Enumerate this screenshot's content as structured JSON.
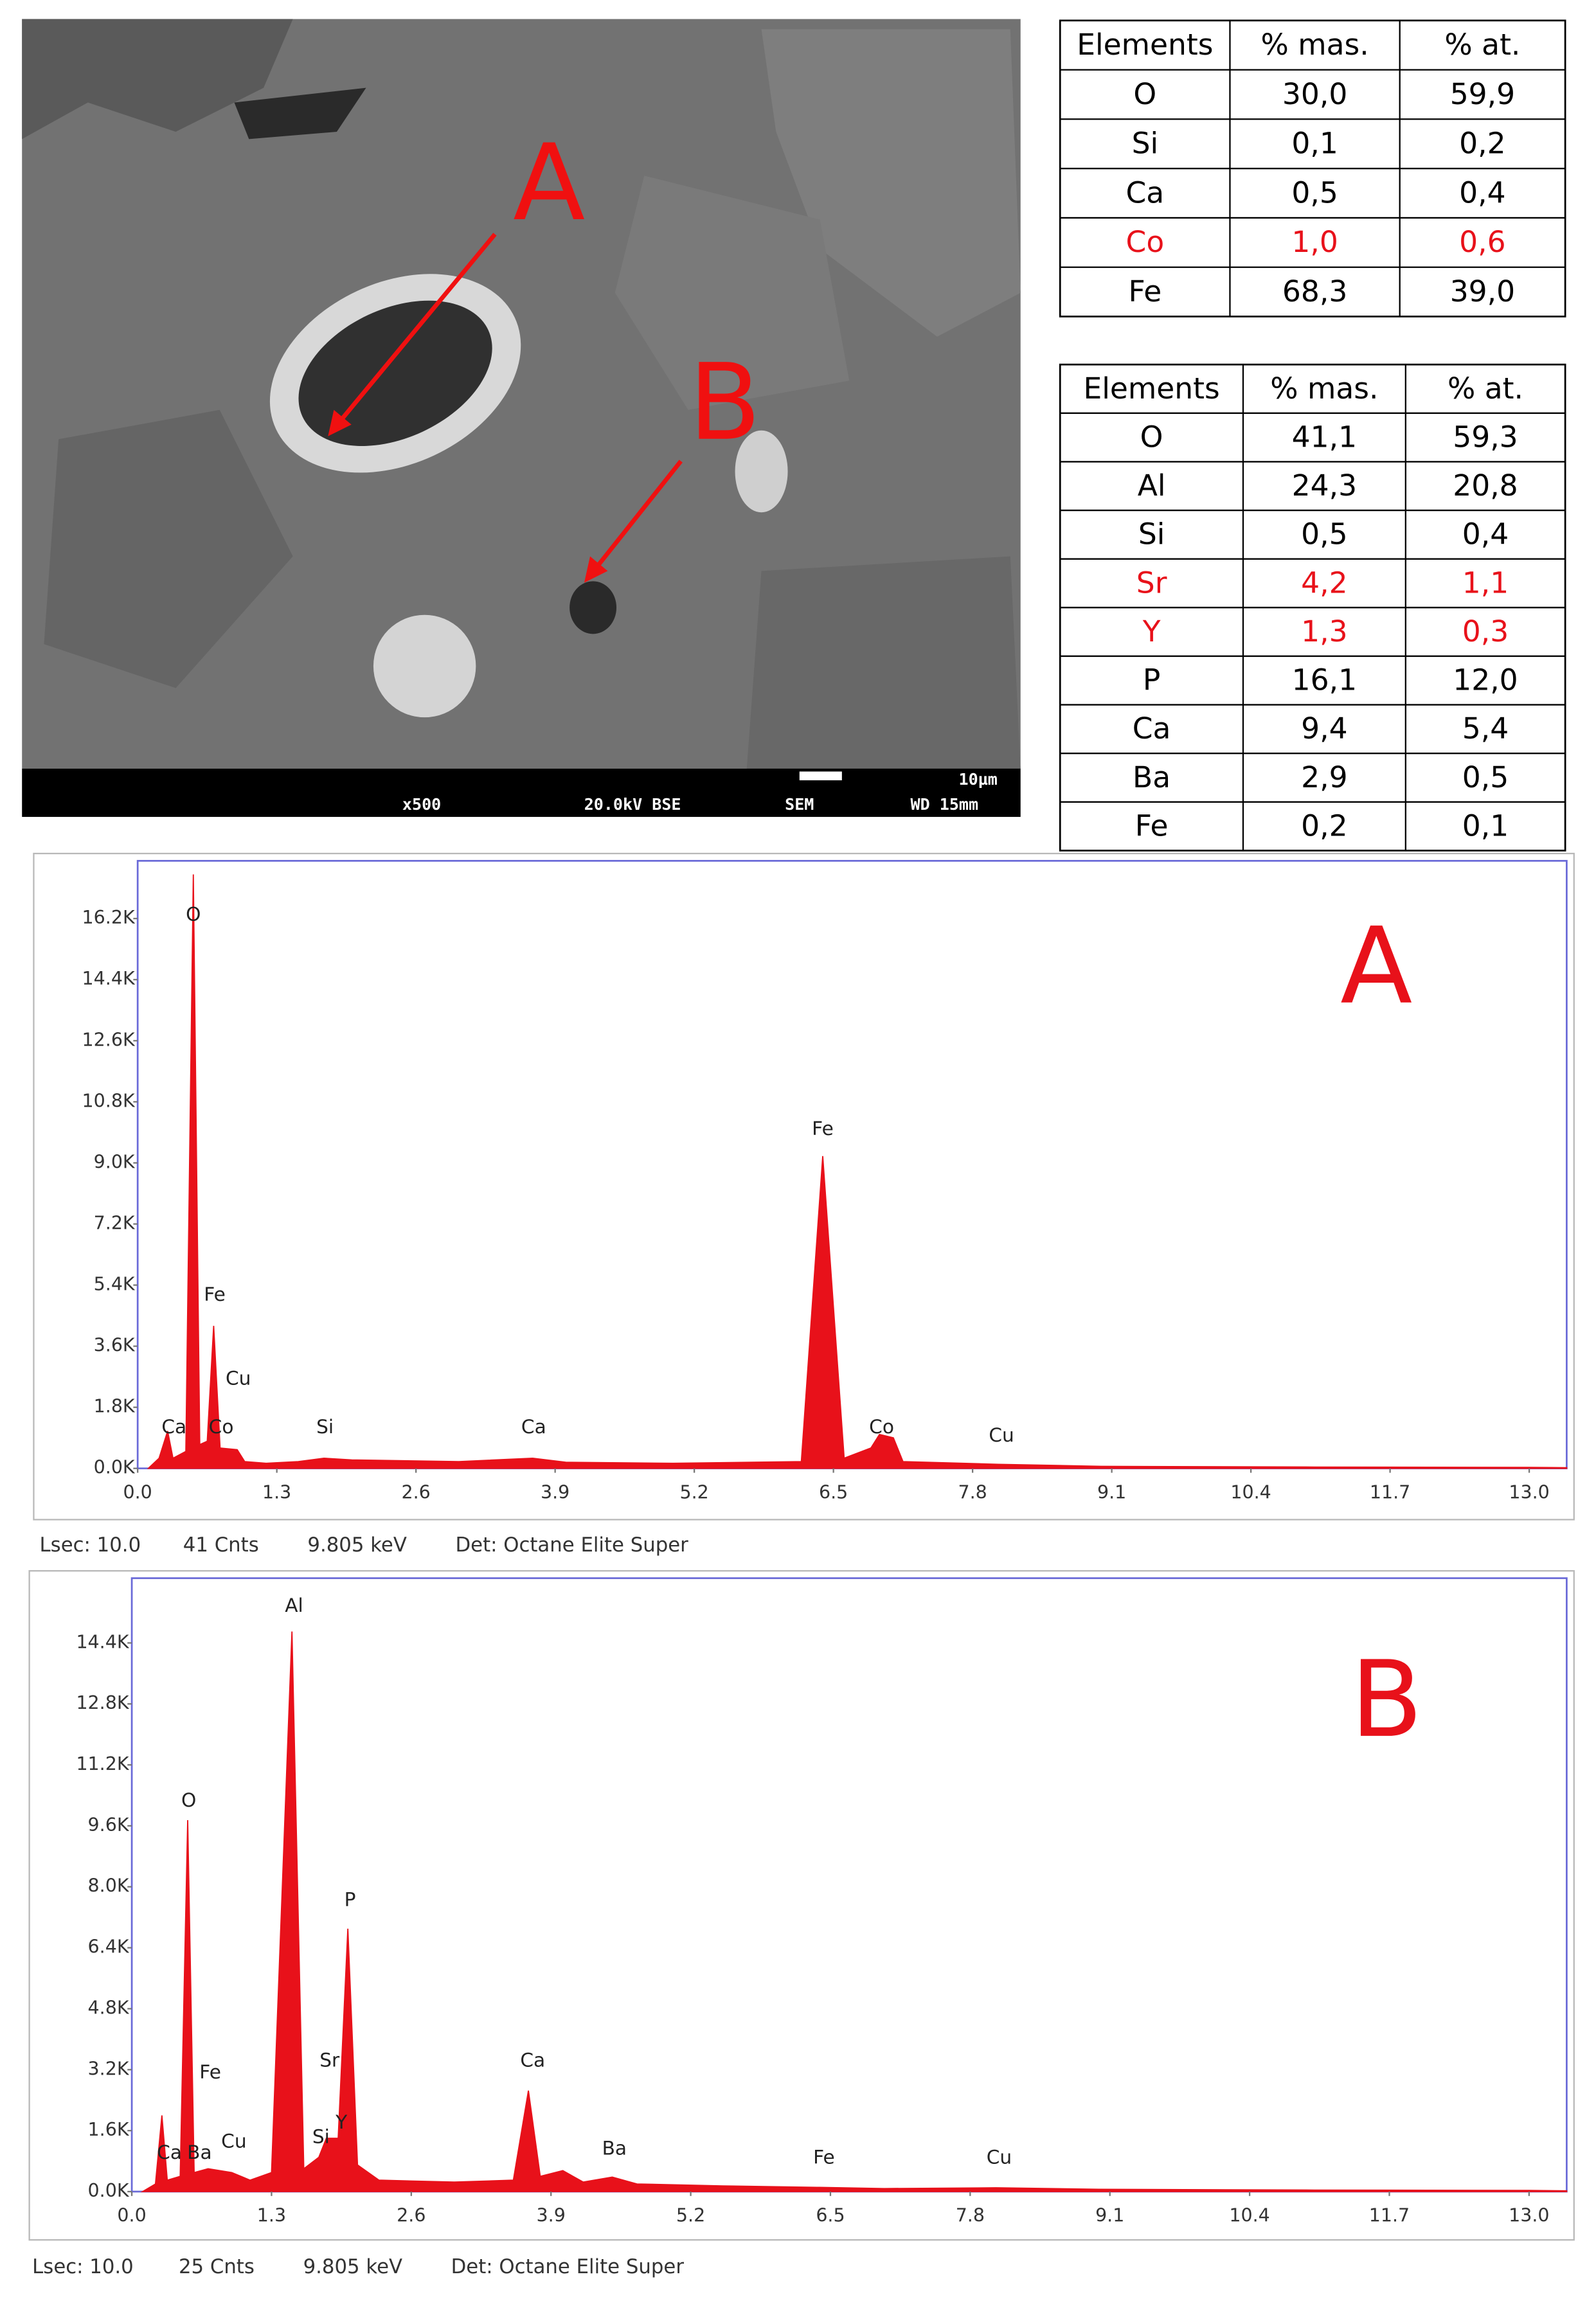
{
  "sem_image": {
    "labels": [
      "A",
      "B"
    ],
    "magnification": "x500",
    "voltage_mode": "20.0kV BSE",
    "instrument": "SEM",
    "working_distance": "WD 15mm",
    "scale_bar": "10µm",
    "arrow_color": "#f01010"
  },
  "tables": [
    {
      "header": [
        "Elements",
        "% mas.",
        "% at."
      ],
      "rows": [
        [
          "O",
          "30,0",
          "59,9"
        ],
        [
          "Si",
          "0,1",
          "0,2"
        ],
        [
          "Ca",
          "0,5",
          "0,4"
        ],
        [
          "Co",
          "1,0",
          "0,6"
        ],
        [
          "Fe",
          "68,3",
          "39,0"
        ]
      ],
      "highlight_rows": [
        3
      ],
      "highlight_color": "#e8111a"
    },
    {
      "header": [
        "Elements",
        "% mas.",
        "% at."
      ],
      "rows": [
        [
          "O",
          "41,1",
          "59,3"
        ],
        [
          "Al",
          "24,3",
          "20,8"
        ],
        [
          "Si",
          "0,5",
          "0,4"
        ],
        [
          "Sr",
          "4,2",
          "1,1"
        ],
        [
          "Y",
          "1,3",
          "0,3"
        ],
        [
          "P",
          "16,1",
          "12,0"
        ],
        [
          "Ca",
          "9,4",
          "5,4"
        ],
        [
          "Ba",
          "2,9",
          "0,5"
        ],
        [
          "Fe",
          "0,2",
          "0,1"
        ]
      ],
      "highlight_rows": [
        3,
        4
      ],
      "highlight_color": "#e8111a"
    }
  ],
  "chart_data": [
    {
      "type": "area",
      "title": "A",
      "color": "#e8111a",
      "x": [
        0.1,
        0.2,
        0.28,
        0.33,
        0.45,
        0.52,
        0.58,
        0.65,
        0.71,
        0.77,
        0.93,
        1.0,
        1.2,
        1.5,
        1.74,
        2.0,
        3.0,
        3.69,
        4.0,
        5.0,
        6.2,
        6.4,
        6.6,
        6.85,
        6.93,
        7.06,
        7.15,
        8.04,
        9.0,
        11.0,
        13.0,
        13.35
      ],
      "values": [
        0,
        300,
        1100,
        300,
        500,
        17500,
        700,
        800,
        4200,
        600,
        550,
        200,
        150,
        200,
        300,
        250,
        200,
        300,
        180,
        150,
        200,
        9200,
        300,
        600,
        1000,
        900,
        200,
        120,
        60,
        40,
        30,
        20
      ],
      "xlim": [
        0,
        13.35
      ],
      "ylim": [
        0,
        17900
      ],
      "xticks": [
        {
          "value": 0,
          "label": "0.0"
        },
        1.3,
        2.6,
        3.9,
        5.2,
        6.5,
        7.8,
        9.1,
        10.4,
        11.7,
        {
          "value": 13,
          "label": "13.0"
        }
      ],
      "yticks": [
        {
          "value": 0,
          "label": "0.0K"
        },
        {
          "value": 1800,
          "label": "1.8K"
        },
        {
          "value": 3600,
          "label": "3.6K"
        },
        {
          "value": 5400,
          "label": "5.4K"
        },
        {
          "value": 7200,
          "label": "7.2K"
        },
        {
          "value": 9000,
          "label": "9.0K"
        },
        {
          "value": 10800,
          "label": "10.8K"
        },
        {
          "value": 12600,
          "label": "12.6K"
        },
        {
          "value": 14400,
          "label": "14.4K"
        },
        {
          "value": 16200,
          "label": "16.2K"
        }
      ],
      "annotations": [
        {
          "text": "Ca",
          "x": 0.34,
          "y": 1200
        },
        {
          "text": "O",
          "x": 0.52,
          "y": 16300
        },
        {
          "text": "Fe",
          "x": 0.72,
          "y": 5100
        },
        {
          "text": "Cu",
          "x": 0.94,
          "y": 2630
        },
        {
          "text": "Co",
          "x": 0.78,
          "y": 1200
        },
        {
          "text": "Si",
          "x": 1.75,
          "y": 1200
        },
        {
          "text": "Ca",
          "x": 3.7,
          "y": 1200
        },
        {
          "text": "Fe",
          "x": 6.4,
          "y": 9980
        },
        {
          "text": "Co",
          "x": 6.95,
          "y": 1200
        },
        {
          "text": "Cu",
          "x": 8.07,
          "y": 950
        }
      ],
      "footer": [
        "Lsec: 10.0",
        "41 Cnts",
        "9.805 keV",
        "Det: Octane Elite Super"
      ]
    },
    {
      "type": "area",
      "title": "B",
      "color": "#e8111a",
      "x": [
        0.1,
        0.22,
        0.28,
        0.33,
        0.45,
        0.52,
        0.58,
        0.71,
        0.93,
        1.1,
        1.3,
        1.49,
        1.6,
        1.74,
        1.81,
        1.92,
        2.01,
        2.1,
        2.3,
        3.0,
        3.55,
        3.69,
        3.8,
        4.01,
        4.2,
        4.47,
        4.7,
        5.5,
        6.4,
        7.0,
        8.04,
        9.0,
        11.0,
        13.0,
        13.35
      ],
      "values": [
        0,
        200,
        2000,
        300,
        400,
        9750,
        500,
        600,
        500,
        300,
        500,
        14700,
        600,
        900,
        1400,
        1400,
        6900,
        700,
        300,
        250,
        300,
        2650,
        400,
        550,
        250,
        380,
        200,
        150,
        110,
        80,
        100,
        60,
        40,
        30,
        20
      ],
      "xlim": [
        0,
        13.35
      ],
      "ylim": [
        0,
        16100
      ],
      "xticks": [
        {
          "value": 0,
          "label": "0.0"
        },
        1.3,
        2.6,
        3.9,
        5.2,
        6.5,
        7.8,
        9.1,
        10.4,
        11.7,
        {
          "value": 13,
          "label": "13.0"
        }
      ],
      "yticks": [
        {
          "value": 0,
          "label": "0.0K"
        },
        {
          "value": 1600,
          "label": "1.6K"
        },
        {
          "value": 3200,
          "label": "3.2K"
        },
        {
          "value": 4800,
          "label": "4.8K"
        },
        {
          "value": 6400,
          "label": "6.4K"
        },
        {
          "value": 8000,
          "label": "8.0K"
        },
        {
          "value": 9600,
          "label": "9.6K"
        },
        {
          "value": 11200,
          "label": "11.2K"
        },
        {
          "value": 12800,
          "label": "12.8K"
        },
        {
          "value": 14400,
          "label": "14.4K"
        }
      ],
      "annotations": [
        {
          "text": "Al",
          "x": 1.51,
          "y": 15360
        },
        {
          "text": "O",
          "x": 0.53,
          "y": 10250
        },
        {
          "text": "P",
          "x": 2.03,
          "y": 7640
        },
        {
          "text": "Fe",
          "x": 0.73,
          "y": 3110
        },
        {
          "text": "Sr",
          "x": 1.84,
          "y": 3420
        },
        {
          "text": "Cu",
          "x": 0.95,
          "y": 1300
        },
        {
          "text": "Ca",
          "x": 0.35,
          "y": 1000
        },
        {
          "text": "Ba",
          "x": 0.63,
          "y": 1000
        },
        {
          "text": "Si",
          "x": 1.76,
          "y": 1420
        },
        {
          "text": "Y",
          "x": 1.95,
          "y": 1800
        },
        {
          "text": "Ca",
          "x": 3.73,
          "y": 3420
        },
        {
          "text": "Ba",
          "x": 4.49,
          "y": 1110
        },
        {
          "text": "Fe",
          "x": 6.44,
          "y": 880
        },
        {
          "text": "Cu",
          "x": 8.07,
          "y": 880
        }
      ],
      "footer": [
        "Lsec: 10.0",
        "25 Cnts",
        "9.805 keV",
        "Det: Octane Elite Super"
      ]
    }
  ]
}
